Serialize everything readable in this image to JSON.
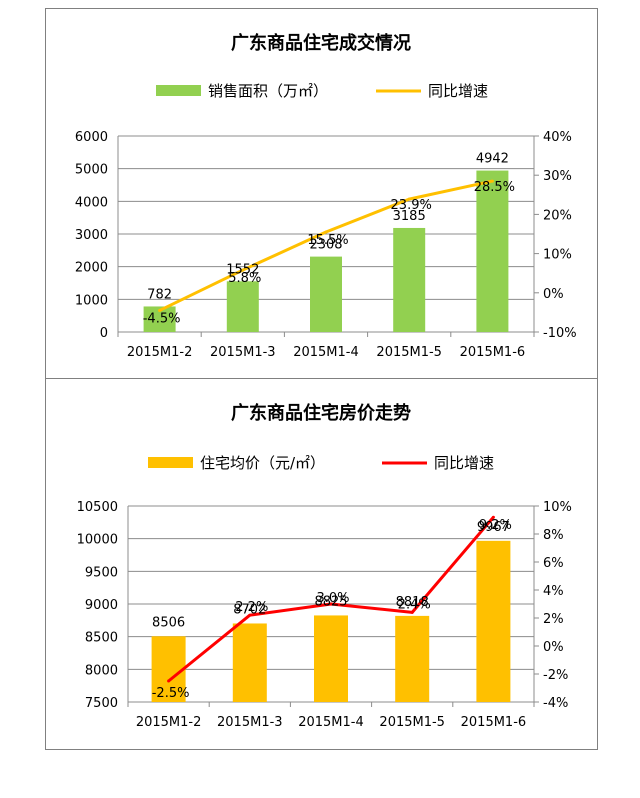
{
  "chart_data": [
    {
      "type": "bar",
      "title": "广东商品住宅成交情况",
      "categories": [
        "2015M1-2",
        "2015M1-3",
        "2015M1-4",
        "2015M1-5",
        "2015M1-6"
      ],
      "series": [
        {
          "name": "销售面积（万㎡）",
          "type": "bar",
          "axis": "left",
          "color": "#92D050",
          "values": [
            782,
            1552,
            2308,
            3185,
            4942
          ],
          "labels": [
            "782",
            "1552",
            "2308",
            "3185",
            "4942"
          ]
        },
        {
          "name": "同比增速",
          "type": "line",
          "axis": "right",
          "color": "#FFC000",
          "values": [
            -4.5,
            5.8,
            15.5,
            23.9,
            28.5
          ],
          "labels": [
            "-4.5%",
            "5.8%",
            "15.5%",
            "23.9%",
            "28.5%"
          ]
        }
      ],
      "ylim": [
        0,
        6000
      ],
      "yticks": [
        "0",
        "1000",
        "2000",
        "3000",
        "4000",
        "5000",
        "6000"
      ],
      "y2lim": [
        -10,
        40
      ],
      "y2ticks": [
        "-10%",
        "0%",
        "10%",
        "20%",
        "30%",
        "40%"
      ],
      "grid": true,
      "legend": "top"
    },
    {
      "type": "bar",
      "title": "广东商品住宅房价走势",
      "categories": [
        "2015M1-2",
        "2015M1-3",
        "2015M1-4",
        "2015M1-5",
        "2015M1-6"
      ],
      "series": [
        {
          "name": "住宅均价（元/㎡）",
          "type": "bar",
          "axis": "left",
          "color": "#FFC000",
          "values": [
            8506,
            8702,
            8825,
            8818,
            9967
          ],
          "labels": [
            "8506",
            "8702",
            "8825",
            "8818",
            "9967"
          ]
        },
        {
          "name": "同比增速",
          "type": "line",
          "axis": "right",
          "color": "#FF0000",
          "values": [
            -2.5,
            2.2,
            3.0,
            2.4,
            9.2
          ],
          "labels": [
            "-2.5%",
            "2.2%",
            "3.0%",
            "2.4%",
            "9.2%"
          ]
        }
      ],
      "ylim": [
        7500,
        10500
      ],
      "yticks": [
        "7500",
        "8000",
        "8500",
        "9000",
        "9500",
        "10000",
        "10500"
      ],
      "y2lim": [
        -4,
        10
      ],
      "y2ticks": [
        "-4%",
        "-2%",
        "0%",
        "2%",
        "4%",
        "6%",
        "8%",
        "10%"
      ],
      "grid": true,
      "legend": "top"
    }
  ]
}
